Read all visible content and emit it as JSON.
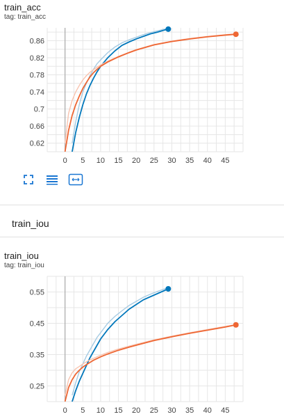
{
  "charts": [
    {
      "title": "train_acc",
      "tag": "tag: train_acc",
      "chart_data": {
        "type": "line",
        "title": "train_acc",
        "xlim": [
          -5,
          50
        ],
        "ylim": [
          0.6,
          0.89
        ],
        "xticks": [
          0,
          5,
          10,
          15,
          20,
          25,
          30,
          35,
          40,
          45
        ],
        "yticks": [
          0.62,
          0.66,
          0.7,
          0.74,
          0.78,
          0.82,
          0.86
        ],
        "ytick_labels": [
          "0.62",
          "0.66",
          "0.7",
          "0.74",
          "0.78",
          "0.82",
          "0.86"
        ],
        "grid": true,
        "series": [
          {
            "color": "#0077bb",
            "smoothed_color": "#0077bb",
            "raw_color": "#a6cbe3",
            "x": [
              2,
              3,
              4,
              5,
              6,
              7,
              8,
              9,
              10,
              12,
              14,
              16,
              18,
              20,
              22,
              24,
              26,
              28,
              29
            ],
            "y": [
              0.6,
              0.645,
              0.68,
              0.71,
              0.735,
              0.755,
              0.772,
              0.787,
              0.8,
              0.82,
              0.836,
              0.849,
              0.857,
              0.864,
              0.87,
              0.876,
              0.88,
              0.885,
              0.887
            ],
            "raw_y": [
              0.62,
              0.67,
              0.71,
              0.74,
              0.76,
              0.778,
              0.793,
              0.806,
              0.815,
              0.832,
              0.845,
              0.855,
              0.862,
              0.868,
              0.874,
              0.879,
              0.883,
              0.887,
              0.888
            ]
          },
          {
            "color": "#ee6633",
            "smoothed_color": "#ee6633",
            "raw_color": "#f8c4b0",
            "x": [
              0,
              1,
              2,
              3,
              4,
              5,
              6,
              7,
              8,
              9,
              10,
              12,
              15,
              18,
              20,
              25,
              30,
              35,
              40,
              45,
              48
            ],
            "y": [
              0.6,
              0.65,
              0.685,
              0.71,
              0.73,
              0.748,
              0.762,
              0.775,
              0.785,
              0.793,
              0.8,
              0.81,
              0.822,
              0.832,
              0.838,
              0.85,
              0.858,
              0.864,
              0.869,
              0.873,
              0.875
            ],
            "raw_y": [
              0.62,
              0.69,
              0.72,
              0.74,
              0.755,
              0.768,
              0.778,
              0.786,
              0.792,
              0.798,
              0.803,
              0.812,
              0.823,
              0.833,
              0.839,
              0.851,
              0.859,
              0.865,
              0.87,
              0.874,
              0.876
            ]
          }
        ]
      }
    },
    {
      "title": "train_iou",
      "tag": "tag: train_iou",
      "chart_data": {
        "type": "line",
        "title": "train_iou",
        "xlim": [
          -5,
          50
        ],
        "ylim": [
          0.2,
          0.6
        ],
        "xticks": [
          0,
          5,
          10,
          15,
          20,
          25,
          30,
          35,
          40,
          45
        ],
        "yticks": [
          0.25,
          0.35,
          0.45,
          0.55
        ],
        "ytick_labels": [
          "0.25",
          "0.35",
          "0.45",
          "0.55"
        ],
        "grid": true,
        "series": [
          {
            "color": "#0077bb",
            "smoothed_color": "#0077bb",
            "raw_color": "#a6cbe3",
            "x": [
              2,
              3,
              4,
              5,
              6,
              7,
              8,
              9,
              10,
              12,
              14,
              16,
              18,
              20,
              22,
              24,
              26,
              28,
              29
            ],
            "y": [
              0.2,
              0.235,
              0.265,
              0.29,
              0.315,
              0.34,
              0.36,
              0.38,
              0.4,
              0.43,
              0.455,
              0.475,
              0.495,
              0.51,
              0.525,
              0.535,
              0.545,
              0.555,
              0.56
            ],
            "raw_y": [
              0.22,
              0.26,
              0.295,
              0.32,
              0.345,
              0.365,
              0.385,
              0.405,
              0.42,
              0.45,
              0.472,
              0.49,
              0.507,
              0.52,
              0.533,
              0.543,
              0.552,
              0.56,
              0.563
            ]
          },
          {
            "color": "#ee6633",
            "smoothed_color": "#ee6633",
            "raw_color": "#f8c4b0",
            "x": [
              0,
              1,
              2,
              3,
              4,
              5,
              6,
              7,
              8,
              10,
              12,
              15,
              18,
              20,
              25,
              30,
              35,
              40,
              45,
              48
            ],
            "y": [
              0.2,
              0.245,
              0.27,
              0.288,
              0.3,
              0.31,
              0.318,
              0.325,
              0.332,
              0.343,
              0.352,
              0.364,
              0.374,
              0.38,
              0.395,
              0.407,
              0.418,
              0.428,
              0.438,
              0.445
            ],
            "raw_y": [
              0.22,
              0.27,
              0.292,
              0.305,
              0.312,
              0.32,
              0.327,
              0.333,
              0.338,
              0.348,
              0.357,
              0.368,
              0.377,
              0.383,
              0.397,
              0.409,
              0.42,
              0.43,
              0.44,
              0.446
            ]
          }
        ]
      }
    }
  ],
  "toolbar": {
    "fullscreen_icon": "fullscreen-icon",
    "data_table_icon": "data-table-icon",
    "fit_domain_icon": "fit-domain-icon"
  },
  "section": {
    "title": "train_iou"
  },
  "colors": {
    "accent": "#1976d2",
    "grid": "#e0e0e0",
    "axis": "#999999"
  }
}
